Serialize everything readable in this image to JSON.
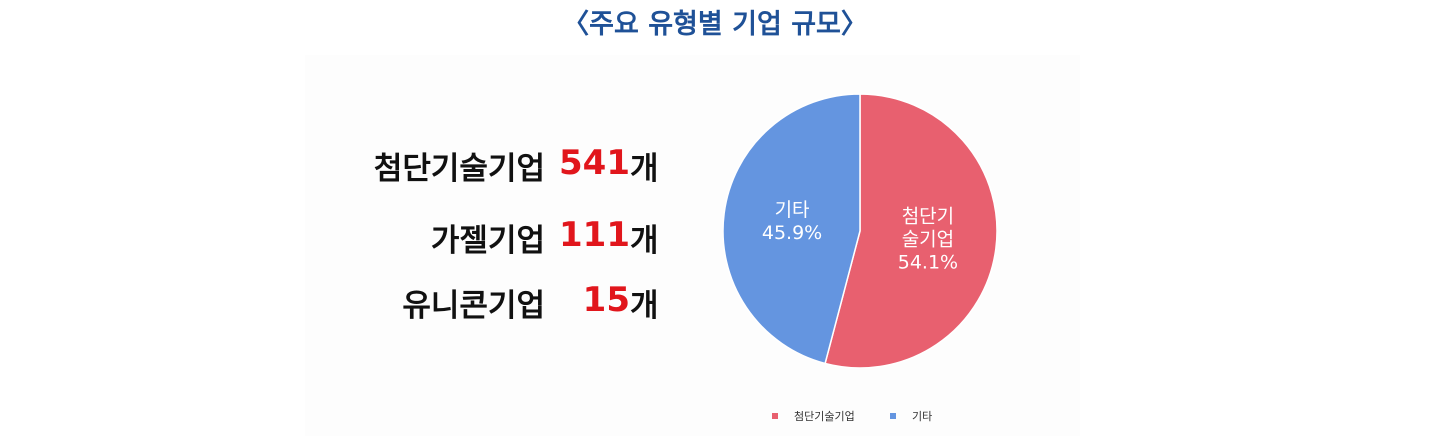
{
  "title": "〈주요 유형별 기업 규모〉",
  "items": [
    {
      "name": "첨단기술기업",
      "count": "541",
      "unit": "개"
    },
    {
      "name": "가젤기업",
      "count": "111",
      "unit": "개"
    },
    {
      "name": "유니콘기업",
      "count": "15",
      "unit": "개"
    }
  ],
  "chart_data": {
    "type": "pie",
    "categories": [
      "첨단기술기업",
      "기타"
    ],
    "values": [
      54.1,
      45.9
    ],
    "value_labels": [
      "54.1%",
      "45.9%"
    ],
    "colors": [
      "#e8606f",
      "#6495e0"
    ],
    "legend": "bottom"
  }
}
